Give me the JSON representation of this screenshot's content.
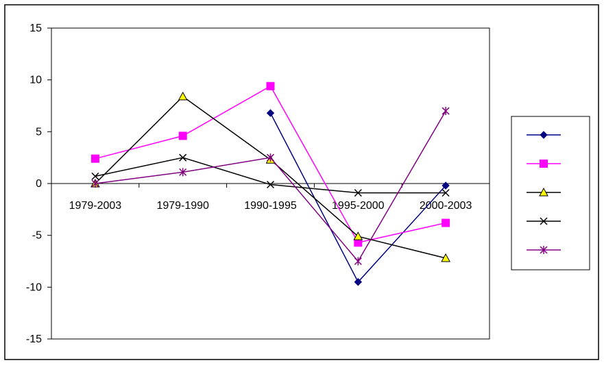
{
  "chart_data": {
    "type": "line",
    "title": "",
    "xlabel": "",
    "ylabel": "",
    "categories": [
      "1979-2003",
      "1979-1990",
      "1990-1995",
      "1995-2000",
      "2000-2003"
    ],
    "ylim": [
      -15,
      15
    ],
    "yticks": [
      15,
      10,
      5,
      0,
      -5,
      -10,
      -15
    ],
    "grid": false,
    "legend": "right",
    "series": [
      {
        "values": [
          null,
          null,
          6.8,
          -9.5,
          -0.2
        ],
        "color": "#000080",
        "marker": "diamond"
      },
      {
        "values": [
          2.4,
          4.6,
          9.4,
          -5.7,
          -3.8
        ],
        "color": "#ff00ff",
        "marker": "square"
      },
      {
        "values": [
          0.0,
          8.4,
          2.3,
          -5.1,
          -7.2
        ],
        "color": "#000000",
        "marker": "triangle",
        "marker_fill": "#ffff00"
      },
      {
        "values": [
          0.7,
          2.5,
          -0.1,
          -0.9,
          -0.9
        ],
        "color": "#000000",
        "marker": "x"
      },
      {
        "values": [
          0.0,
          1.1,
          2.5,
          -7.5,
          7.0
        ],
        "color": "#800080",
        "marker": "star"
      }
    ]
  }
}
